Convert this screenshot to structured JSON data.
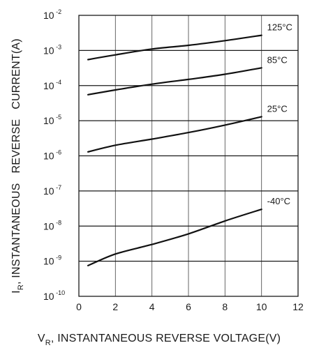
{
  "chart_data": {
    "type": "line",
    "xlabel": "INSTANTANEOUS  REVERSE  VOLTAGE(V)",
    "xlabel_symbol": "V",
    "xlabel_subscript": "R",
    "ylabel": "INSTANTANEOUS   REVERSE   CURRENT(A)",
    "ylabel_symbol": "I",
    "ylabel_subscript": "R",
    "xlim": [
      0,
      12
    ],
    "ylim": [
      1e-10,
      0.01
    ],
    "yscale": "log",
    "x_ticks": [
      "0",
      "2",
      "4",
      "6",
      "8",
      "10",
      "12"
    ],
    "y_ticks": [
      {
        "base": "10",
        "exp": "-10"
      },
      {
        "base": "10",
        "exp": "-9"
      },
      {
        "base": "10",
        "exp": "-8"
      },
      {
        "base": "10",
        "exp": "-7"
      },
      {
        "base": "10",
        "exp": "-6"
      },
      {
        "base": "10",
        "exp": "-5"
      },
      {
        "base": "10",
        "exp": "-4"
      },
      {
        "base": "10",
        "exp": "-3"
      },
      {
        "base": "10",
        "exp": "-2"
      }
    ],
    "grid": true,
    "series": [
      {
        "name": "125°C",
        "x": [
          0.5,
          2,
          4,
          6,
          8,
          10
        ],
        "y": [
          0.00055,
          0.00075,
          0.0011,
          0.0014,
          0.0019,
          0.0027
        ]
      },
      {
        "name": "85°C",
        "x": [
          0.5,
          2,
          4,
          6,
          8,
          10
        ],
        "y": [
          5.5e-05,
          7.5e-05,
          0.00011,
          0.00015,
          0.00021,
          0.00032
        ]
      },
      {
        "name": "25°C",
        "x": [
          0.5,
          2,
          4,
          6,
          8,
          10
        ],
        "y": [
          1.3e-06,
          2e-06,
          3e-06,
          4.6e-06,
          7.5e-06,
          1.3e-05
        ]
      },
      {
        "name": "-40°C",
        "x": [
          0.5,
          2,
          4,
          6,
          8,
          10
        ],
        "y": [
          7.5e-10,
          1.6e-09,
          3e-09,
          6e-09,
          1.4e-08,
          3e-08
        ]
      }
    ]
  }
}
